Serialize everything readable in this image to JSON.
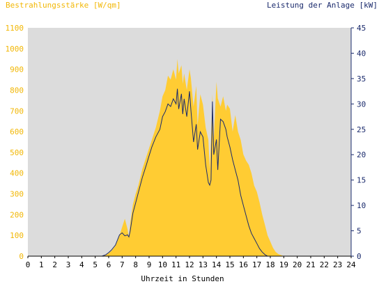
{
  "chart_data": {
    "type": "area",
    "left_axis_title": "Bestrahlungsstärke [W/qm]",
    "right_axis_title": "Leistung der Anlage [kW]",
    "xlabel": "Uhrzeit in Stunden",
    "x_ticks": [
      "0",
      "1",
      "2",
      "3",
      "4",
      "5",
      "6",
      "7",
      "8",
      "9",
      "10",
      "11",
      "12",
      "13",
      "14",
      "15",
      "16",
      "17",
      "18",
      "19",
      "20",
      "21",
      "22",
      "23",
      "24"
    ],
    "y_left_ticks": [
      "0",
      "100",
      "200",
      "300",
      "400",
      "500",
      "600",
      "700",
      "800",
      "900",
      "1000",
      "1100"
    ],
    "y_right_ticks": [
      "0",
      "5",
      "10",
      "15",
      "20",
      "25",
      "30",
      "35",
      "40",
      "45"
    ],
    "xlim": [
      0,
      24
    ],
    "ylim_left": [
      0,
      1100
    ],
    "ylim_right": [
      0,
      45
    ],
    "grid": false,
    "colors": {
      "plot_background": "#dcdcdc",
      "irradiance_fill": "#ffcc33",
      "power_line": "#1a2a6c",
      "left_axis_text": "#f2b705",
      "right_axis_text": "#1a2a6c"
    },
    "series": [
      {
        "axis": "left",
        "render": "area",
        "x": [
          0,
          5.5,
          5.8,
          6.0,
          6.2,
          6.5,
          6.8,
          7.0,
          7.2,
          7.4,
          7.5,
          7.6,
          7.8,
          8.0,
          8.2,
          8.5,
          8.8,
          9.0,
          9.2,
          9.5,
          9.8,
          10.0,
          10.2,
          10.4,
          10.6,
          10.8,
          11.0,
          11.1,
          11.2,
          11.4,
          11.5,
          11.6,
          11.8,
          12.0,
          12.1,
          12.3,
          12.5,
          12.6,
          12.8,
          13.0,
          13.2,
          13.4,
          13.5,
          13.6,
          13.7,
          13.8,
          14.0,
          14.1,
          14.3,
          14.5,
          14.7,
          14.8,
          15.0,
          15.2,
          15.4,
          15.6,
          15.8,
          16.0,
          16.2,
          16.4,
          16.6,
          16.8,
          17.0,
          17.2,
          17.4,
          17.6,
          17.8,
          18.0,
          18.2,
          18.4,
          18.6,
          18.8,
          19.0,
          19.2,
          19.4,
          24
        ],
        "values": [
          0,
          0,
          5,
          15,
          25,
          50,
          100,
          140,
          180,
          130,
          90,
          160,
          250,
          300,
          340,
          420,
          480,
          520,
          560,
          620,
          700,
          770,
          800,
          870,
          850,
          900,
          850,
          950,
          880,
          920,
          830,
          880,
          800,
          900,
          860,
          720,
          820,
          630,
          780,
          730,
          620,
          560,
          420,
          560,
          780,
          560,
          840,
          760,
          720,
          770,
          700,
          730,
          710,
          600,
          680,
          600,
          560,
          490,
          460,
          440,
          400,
          340,
          310,
          260,
          200,
          150,
          100,
          70,
          40,
          20,
          10,
          5,
          0,
          0,
          0,
          0
        ]
      },
      {
        "axis": "right",
        "render": "line",
        "x": [
          0,
          5.5,
          5.8,
          6.0,
          6.2,
          6.5,
          6.8,
          7.0,
          7.2,
          7.4,
          7.5,
          7.6,
          7.8,
          8.0,
          8.2,
          8.5,
          8.8,
          9.0,
          9.2,
          9.5,
          9.8,
          10.0,
          10.2,
          10.4,
          10.6,
          10.8,
          11.0,
          11.1,
          11.2,
          11.4,
          11.5,
          11.6,
          11.8,
          12.0,
          12.1,
          12.3,
          12.5,
          12.6,
          12.8,
          13.0,
          13.2,
          13.4,
          13.5,
          13.6,
          13.7,
          13.8,
          14.0,
          14.1,
          14.3,
          14.5,
          14.7,
          14.8,
          15.0,
          15.2,
          15.4,
          15.6,
          15.8,
          16.0,
          16.2,
          16.4,
          16.6,
          16.8,
          17.0,
          17.2,
          17.4,
          17.6,
          17.8,
          18.0,
          18.2,
          18.4,
          18.6,
          18.8,
          19.0,
          19.2,
          19.4,
          24
        ],
        "values": [
          0,
          0,
          0.3,
          0.7,
          1.2,
          2.2,
          4.2,
          4.6,
          4.0,
          4.2,
          3.8,
          5.0,
          8.5,
          10.5,
          12.5,
          15.5,
          18.0,
          19.8,
          21.5,
          23.5,
          25.0,
          27.5,
          28.5,
          30.0,
          29.5,
          31.0,
          30.0,
          33.0,
          29.0,
          32.0,
          28.0,
          31.0,
          27.5,
          32.5,
          29.0,
          22.5,
          26.0,
          21.0,
          24.5,
          23.5,
          18.0,
          14.5,
          14.0,
          15.0,
          30.5,
          20.0,
          23.0,
          17.0,
          27.0,
          26.5,
          25.0,
          23.5,
          21.5,
          19.0,
          17.0,
          15.0,
          12.0,
          10.0,
          8.0,
          6.0,
          4.5,
          3.5,
          2.5,
          1.5,
          0.8,
          0.3,
          0,
          0,
          0,
          0,
          0,
          0,
          0,
          0,
          0,
          0
        ]
      }
    ]
  }
}
